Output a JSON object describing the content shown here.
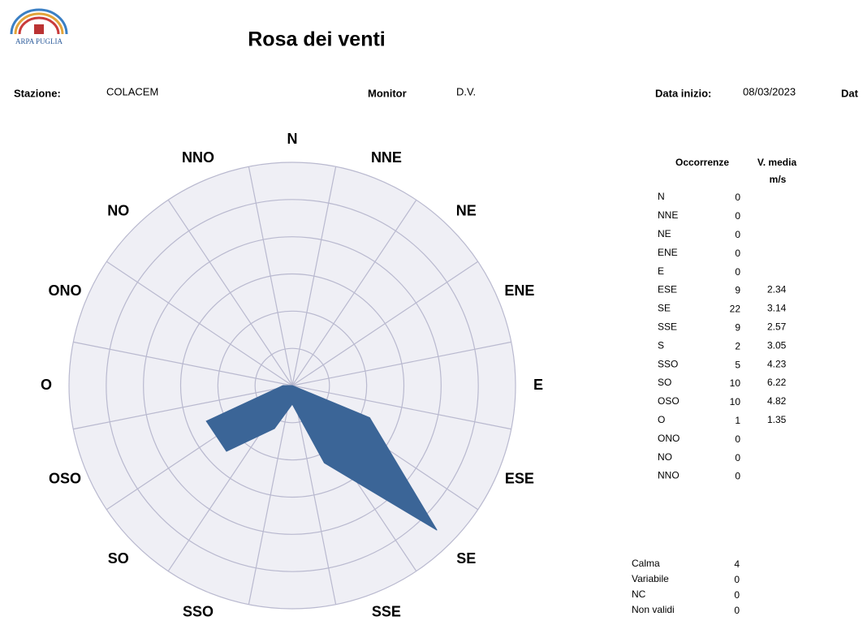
{
  "header": {
    "logo": "ARPA PUGLIA",
    "title": "Rosa dei venti",
    "fields": [
      {
        "label": "Stazione:",
        "value": "COLACEM"
      },
      {
        "label": "Monitor",
        "value": "D.V."
      },
      {
        "label": "Data inizio:",
        "value": "08/03/2023"
      }
    ],
    "cut_label": "Dat"
  },
  "chart_data": {
    "type": "radar",
    "categories": [
      "N",
      "NNE",
      "NE",
      "ENE",
      "E",
      "ESE",
      "SE",
      "SSE",
      "S",
      "SSO",
      "SO",
      "OSO",
      "O",
      "ONO",
      "NO",
      "NNO"
    ],
    "values": [
      0,
      0,
      0,
      0,
      0,
      9,
      22,
      9,
      2,
      5,
      10,
      10,
      1,
      0,
      0,
      0
    ],
    "color": "#3b6597",
    "rlim": [
      0,
      24
    ],
    "rticks": [
      4,
      8,
      12,
      16,
      20,
      24
    ],
    "grid": true
  },
  "table": {
    "headers": [
      "Occorrenze",
      "V. media",
      "m/s"
    ],
    "speeds": [
      null,
      null,
      null,
      null,
      null,
      2.34,
      3.14,
      2.57,
      3.05,
      4.23,
      6.22,
      4.82,
      1.35,
      null,
      null,
      null
    ]
  },
  "summary": [
    {
      "label": "Calma",
      "value": 4
    },
    {
      "label": "Variabile",
      "value": 0
    },
    {
      "label": "NC",
      "value": 0
    },
    {
      "label": "Non validi",
      "value": 0
    }
  ]
}
